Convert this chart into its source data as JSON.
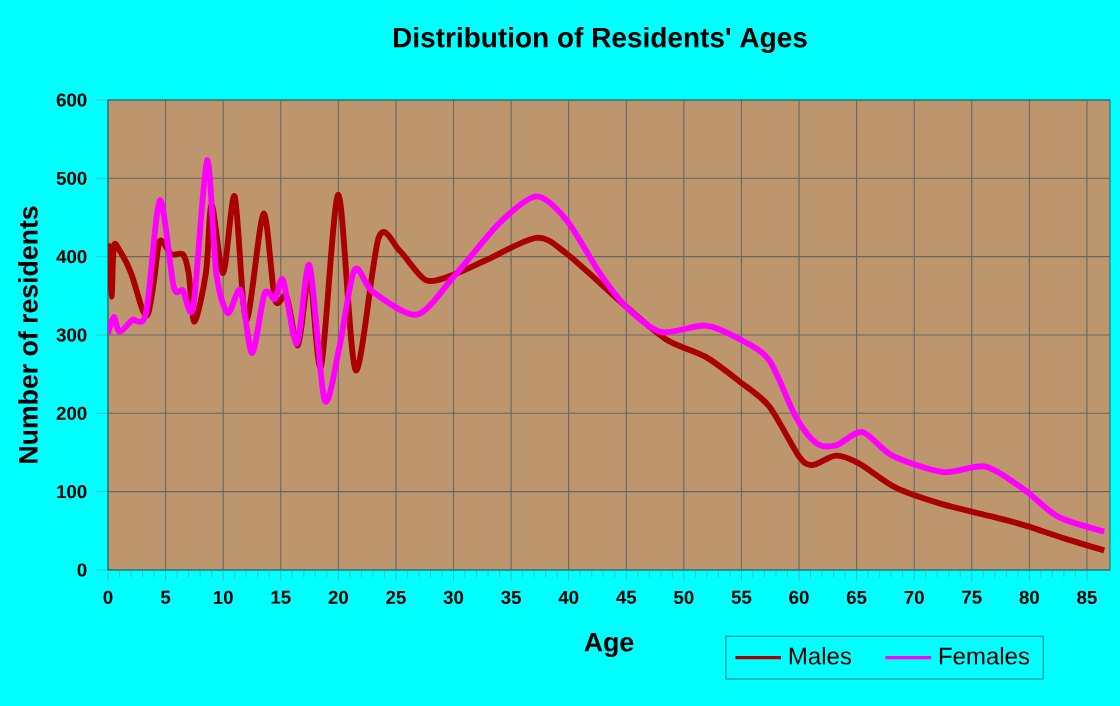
{
  "chart_data": {
    "type": "line",
    "title": "Distribution of Residents' Ages",
    "xlabel": "Age",
    "ylabel": "Number of residents",
    "xlim": [
      0,
      87
    ],
    "ylim": [
      0,
      600
    ],
    "xticks": [
      0,
      5,
      10,
      15,
      20,
      25,
      30,
      35,
      40,
      45,
      50,
      55,
      60,
      65,
      70,
      75,
      80,
      85
    ],
    "yticks": [
      0,
      100,
      200,
      300,
      400,
      500,
      600
    ],
    "grid": true,
    "legend": "bottom right",
    "marker": "none",
    "line_style": "solid",
    "series": [
      {
        "name": "Males",
        "color": "#aa0000",
        "x": [
          0,
          0.3,
          0.5,
          1,
          2,
          3,
          3.5,
          4,
          4.5,
          5.5,
          6.5,
          7,
          7.5,
          8.5,
          9,
          10,
          11,
          12,
          13.5,
          14.5,
          15.5,
          16.5,
          17.5,
          18.5,
          20,
          21.5,
          23.5,
          25.3,
          27.6,
          30,
          32.9,
          37.2,
          39.8,
          45,
          48.5,
          51.9,
          54.8,
          57.4,
          60,
          61.2,
          63.2,
          65.2,
          68.4,
          72.2,
          76.8,
          79.6,
          83.1,
          86.5
        ],
        "values": [
          417,
          349,
          413,
          408,
          379,
          332,
          328,
          370,
          420,
          403,
          403,
          379,
          317,
          379,
          466,
          379,
          477,
          319,
          455,
          345,
          349,
          287,
          377,
          260,
          479,
          255,
          424,
          408,
          370,
          377,
          396,
          424,
          404,
          336,
          294,
          272,
          241,
          209,
          145,
          134,
          146,
          136,
          105,
          85,
          68,
          57,
          40,
          25
        ]
      },
      {
        "name": "Females",
        "color": "#ff00ff",
        "x": [
          0,
          0.5,
          1,
          2.1,
          3.3,
          4.5,
          5.7,
          6.5,
          7.4,
          8.6,
          9.4,
          10.4,
          11.5,
          12.5,
          13.6,
          14.5,
          15.2,
          16.4,
          17.5,
          18.8,
          20.1,
          21.4,
          23,
          26.8,
          30,
          34,
          37.2,
          39.8,
          42.7,
          45,
          48,
          51.9,
          54.8,
          57.4,
          59.7,
          61.5,
          63.2,
          65.5,
          68.1,
          72.5,
          76.2,
          79.6,
          82.5,
          86.5
        ],
        "values": [
          302,
          323,
          304,
          319,
          328,
          472,
          362,
          357,
          336,
          523,
          379,
          328,
          357,
          277,
          353,
          346,
          370,
          289,
          389,
          217,
          285,
          383,
          355,
          326,
          374,
          443,
          477,
          447,
          379,
          336,
          304,
          312,
          295,
          268,
          196,
          162,
          159,
          176,
          146,
          125,
          132,
          102,
          68,
          49
        ]
      }
    ]
  }
}
